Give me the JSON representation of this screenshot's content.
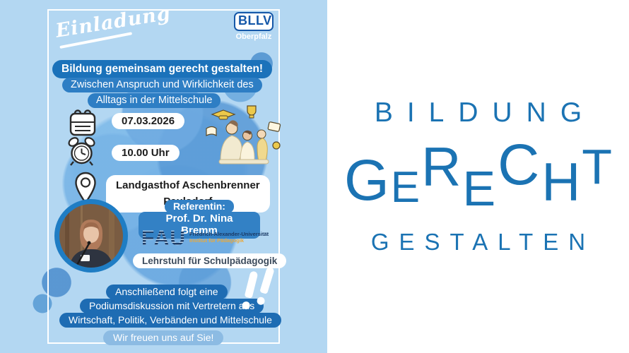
{
  "left_panel": {
    "einladung": "Einladung",
    "bllv": {
      "name": "BLLV",
      "region": "Oberpfalz"
    },
    "title": "Bildung gemeinsam gerecht gestalten!",
    "subtitle_line1": "Zwischen Anspruch und Wirklichkeit des",
    "subtitle_line2": "Alltags in der Mittelschule",
    "details": {
      "date": "07.03.2026",
      "time": "10.00 Uhr",
      "location_line1": "Landgasthof Aschenbrenner",
      "location_line2": "Paulsdorf"
    },
    "speaker": {
      "role": "Referentin:",
      "name": "Prof. Dr. Nina Bremm",
      "org_abbr": "FAU",
      "org_line1": "Friedrich-Alexander-Universität",
      "org_line2": "Institut für Pädagogik",
      "chair": "Lehrstuhl für Schulpädagogik"
    },
    "footer_line1": "Anschließend folgt eine",
    "footer_line2": "Podiumsdiskussion mit Vertretern aus",
    "footer_line3": "Wirtschaft, Politik, Verbänden und Mittelschule",
    "closing": "Wir freuen uns auf Sie!"
  },
  "right_panel": {
    "word1": "BILDUNG",
    "word2": "GERECHT",
    "word3": "GESTALTEN"
  },
  "colors": {
    "background_light_blue": "#b3d7f2",
    "watercolor_blue": "#5a9ed7",
    "pill_dark_blue": "#1e6cb3",
    "pill_medium_blue": "#2e7ec4",
    "pill_light_blue": "#8cbbe3",
    "logo_text_blue": "#1b73b3",
    "fau_navy": "#1a3a66",
    "fau_gold": "#e8a93d",
    "accent_yellow": "#ecc94b"
  }
}
